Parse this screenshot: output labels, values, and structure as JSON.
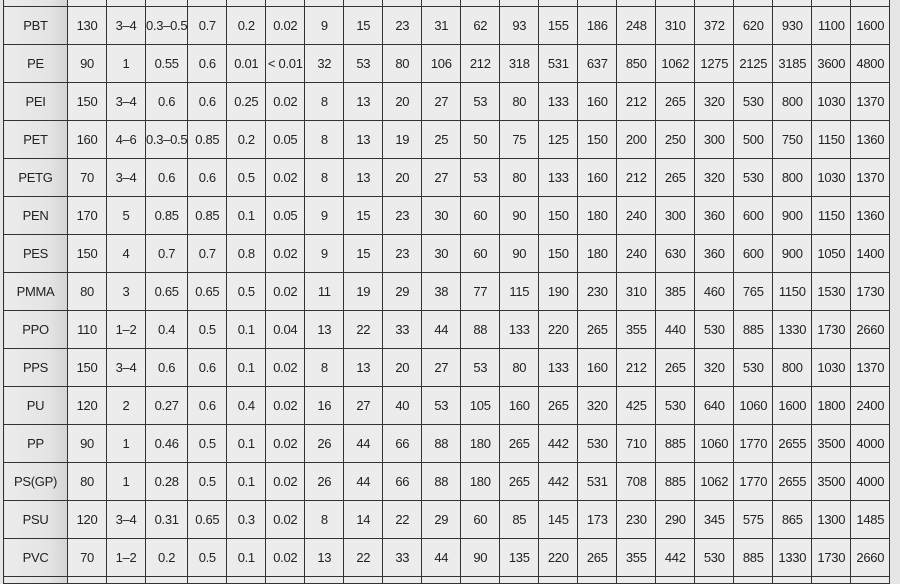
{
  "table": {
    "rows": [
      {
        "name": "PBT",
        "values": [
          "130",
          "3–4",
          "0.3–0.5",
          "0.7",
          "0.2",
          "0.02",
          "9",
          "15",
          "23",
          "31",
          "62",
          "93",
          "155",
          "186",
          "248",
          "310",
          "372",
          "620",
          "930",
          "1100",
          "1600"
        ]
      },
      {
        "name": "PE",
        "values": [
          "90",
          "1",
          "0.55",
          "0.6",
          "0.01",
          "< 0.01",
          "32",
          "53",
          "80",
          "106",
          "212",
          "318",
          "531",
          "637",
          "850",
          "1062",
          "1275",
          "2125",
          "3185",
          "3600",
          "4800"
        ]
      },
      {
        "name": "PEI",
        "values": [
          "150",
          "3–4",
          "0.6",
          "0.6",
          "0.25",
          "0.02",
          "8",
          "13",
          "20",
          "27",
          "53",
          "80",
          "133",
          "160",
          "212",
          "265",
          "320",
          "530",
          "800",
          "1030",
          "1370"
        ]
      },
      {
        "name": "PET",
        "values": [
          "160",
          "4–6",
          "0.3–0.5",
          "0.85",
          "0.2",
          "0.05",
          "8",
          "13",
          "19",
          "25",
          "50",
          "75",
          "125",
          "150",
          "200",
          "250",
          "300",
          "500",
          "750",
          "1150",
          "1360"
        ]
      },
      {
        "name": "PETG",
        "values": [
          "70",
          "3–4",
          "0.6",
          "0.6",
          "0.5",
          "0.02",
          "8",
          "13",
          "20",
          "27",
          "53",
          "80",
          "133",
          "160",
          "212",
          "265",
          "320",
          "530",
          "800",
          "1030",
          "1370"
        ]
      },
      {
        "name": "PEN",
        "values": [
          "170",
          "5",
          "0.85",
          "0.85",
          "0.1",
          "0.05",
          "9",
          "15",
          "23",
          "30",
          "60",
          "90",
          "150",
          "180",
          "240",
          "300",
          "360",
          "600",
          "900",
          "1150",
          "1360"
        ]
      },
      {
        "name": "PES",
        "values": [
          "150",
          "4",
          "0.7",
          "0.7",
          "0.8",
          "0.02",
          "9",
          "15",
          "23",
          "30",
          "60",
          "90",
          "150",
          "180",
          "240",
          "630",
          "360",
          "600",
          "900",
          "1050",
          "1400"
        ]
      },
      {
        "name": "PMMA",
        "values": [
          "80",
          "3",
          "0.65",
          "0.65",
          "0.5",
          "0.02",
          "11",
          "19",
          "29",
          "38",
          "77",
          "115",
          "190",
          "230",
          "310",
          "385",
          "460",
          "765",
          "1150",
          "1530",
          "1730"
        ]
      },
      {
        "name": "PPO",
        "values": [
          "110",
          "1–2",
          "0.4",
          "0.5",
          "0.1",
          "0.04",
          "13",
          "22",
          "33",
          "44",
          "88",
          "133",
          "220",
          "265",
          "355",
          "440",
          "530",
          "885",
          "1330",
          "1730",
          "2660"
        ]
      },
      {
        "name": "PPS",
        "values": [
          "150",
          "3–4",
          "0.6",
          "0.6",
          "0.1",
          "0.02",
          "8",
          "13",
          "20",
          "27",
          "53",
          "80",
          "133",
          "160",
          "212",
          "265",
          "320",
          "530",
          "800",
          "1030",
          "1370"
        ]
      },
      {
        "name": "PU",
        "values": [
          "120",
          "2",
          "0.27",
          "0.6",
          "0.4",
          "0.02",
          "16",
          "27",
          "40",
          "53",
          "105",
          "160",
          "265",
          "320",
          "425",
          "530",
          "640",
          "1060",
          "1600",
          "1800",
          "2400"
        ]
      },
      {
        "name": "PP",
        "values": [
          "90",
          "1",
          "0.46",
          "0.5",
          "0.1",
          "0.02",
          "26",
          "44",
          "66",
          "88",
          "180",
          "265",
          "442",
          "530",
          "710",
          "885",
          "1060",
          "1770",
          "2655",
          "3500",
          "4000"
        ]
      },
      {
        "name": "PS(GP)",
        "values": [
          "80",
          "1",
          "0.28",
          "0.5",
          "0.1",
          "0.02",
          "26",
          "44",
          "66",
          "88",
          "180",
          "265",
          "442",
          "531",
          "708",
          "885",
          "1062",
          "1770",
          "2655",
          "3500",
          "4000"
        ]
      },
      {
        "name": "PSU",
        "values": [
          "120",
          "3–4",
          "0.31",
          "0.65",
          "0.3",
          "0.02",
          "8",
          "14",
          "22",
          "29",
          "60",
          "85",
          "145",
          "173",
          "230",
          "290",
          "345",
          "575",
          "865",
          "1300",
          "1485"
        ]
      },
      {
        "name": "PVC",
        "values": [
          "70",
          "1–2",
          "0.2",
          "0.5",
          "0.1",
          "0.02",
          "13",
          "22",
          "33",
          "44",
          "90",
          "135",
          "220",
          "265",
          "355",
          "442",
          "530",
          "885",
          "1330",
          "1730",
          "2660"
        ]
      }
    ]
  }
}
